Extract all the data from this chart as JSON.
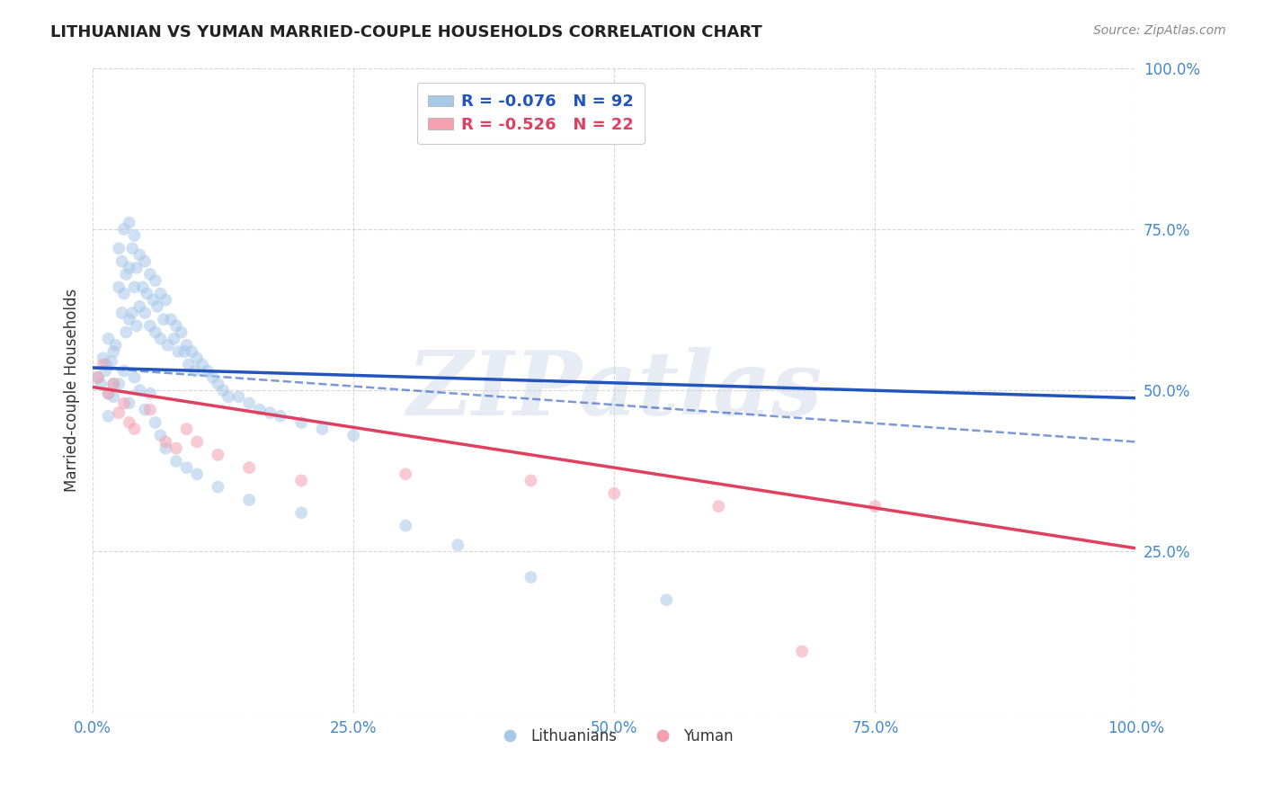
{
  "title": "LITHUANIAN VS YUMAN MARRIED-COUPLE HOUSEHOLDS CORRELATION CHART",
  "source": "Source: ZipAtlas.com",
  "ylabel": "Married-couple Households",
  "xlim": [
    0,
    1
  ],
  "ylim": [
    0,
    1
  ],
  "xticks": [
    0.0,
    0.25,
    0.5,
    0.75,
    1.0
  ],
  "xticklabels": [
    "0.0%",
    "25.0%",
    "50.0%",
    "75.0%",
    "100.0%"
  ],
  "yticks": [
    0.0,
    0.25,
    0.5,
    0.75,
    1.0
  ],
  "yticklabels": [
    "",
    "25.0%",
    "50.0%",
    "75.0%",
    "100.0%"
  ],
  "legend_labels": [
    "Lithuanians",
    "Yuman"
  ],
  "blue_R": -0.076,
  "blue_N": 92,
  "pink_R": -0.526,
  "pink_N": 22,
  "blue_color": "#a8c8e8",
  "pink_color": "#f4a0b0",
  "blue_line_color": "#2255bb",
  "pink_line_color": "#e04060",
  "tick_color": "#4488cc",
  "dot_size": 100,
  "dot_alpha": 0.55,
  "watermark": "ZIPatlas",
  "blue_line_y0": 0.535,
  "blue_line_y1": 0.488,
  "pink_line_y0": 0.505,
  "pink_line_y1": 0.255,
  "dash_line_y0": 0.535,
  "dash_line_y1": 0.42,
  "blue_scatter_x": [
    0.005,
    0.008,
    0.01,
    0.012,
    0.013,
    0.015,
    0.015,
    0.018,
    0.02,
    0.02,
    0.022,
    0.025,
    0.025,
    0.028,
    0.028,
    0.03,
    0.03,
    0.032,
    0.032,
    0.035,
    0.035,
    0.035,
    0.038,
    0.038,
    0.04,
    0.04,
    0.042,
    0.042,
    0.045,
    0.045,
    0.048,
    0.05,
    0.05,
    0.052,
    0.055,
    0.055,
    0.058,
    0.06,
    0.06,
    0.062,
    0.065,
    0.065,
    0.068,
    0.07,
    0.072,
    0.075,
    0.078,
    0.08,
    0.082,
    0.085,
    0.088,
    0.09,
    0.092,
    0.095,
    0.098,
    0.1,
    0.105,
    0.11,
    0.115,
    0.12,
    0.125,
    0.13,
    0.14,
    0.15,
    0.16,
    0.17,
    0.18,
    0.2,
    0.22,
    0.25,
    0.015,
    0.02,
    0.025,
    0.03,
    0.035,
    0.04,
    0.045,
    0.05,
    0.055,
    0.06,
    0.065,
    0.07,
    0.08,
    0.09,
    0.1,
    0.12,
    0.15,
    0.2,
    0.3,
    0.35,
    0.42,
    0.55
  ],
  "blue_scatter_y": [
    0.52,
    0.51,
    0.55,
    0.53,
    0.54,
    0.58,
    0.495,
    0.545,
    0.56,
    0.51,
    0.57,
    0.72,
    0.66,
    0.7,
    0.62,
    0.75,
    0.65,
    0.68,
    0.59,
    0.76,
    0.69,
    0.61,
    0.72,
    0.62,
    0.74,
    0.66,
    0.69,
    0.6,
    0.71,
    0.63,
    0.66,
    0.7,
    0.62,
    0.65,
    0.68,
    0.6,
    0.64,
    0.67,
    0.59,
    0.63,
    0.65,
    0.58,
    0.61,
    0.64,
    0.57,
    0.61,
    0.58,
    0.6,
    0.56,
    0.59,
    0.56,
    0.57,
    0.54,
    0.56,
    0.53,
    0.55,
    0.54,
    0.53,
    0.52,
    0.51,
    0.5,
    0.49,
    0.49,
    0.48,
    0.47,
    0.465,
    0.46,
    0.45,
    0.44,
    0.43,
    0.46,
    0.49,
    0.51,
    0.53,
    0.48,
    0.52,
    0.5,
    0.47,
    0.495,
    0.45,
    0.43,
    0.41,
    0.39,
    0.38,
    0.37,
    0.35,
    0.33,
    0.31,
    0.29,
    0.26,
    0.21,
    0.175
  ],
  "pink_scatter_x": [
    0.005,
    0.01,
    0.015,
    0.02,
    0.025,
    0.03,
    0.035,
    0.04,
    0.055,
    0.07,
    0.08,
    0.09,
    0.1,
    0.12,
    0.15,
    0.2,
    0.3,
    0.42,
    0.5,
    0.6,
    0.68,
    0.75
  ],
  "pink_scatter_y": [
    0.52,
    0.54,
    0.495,
    0.51,
    0.465,
    0.48,
    0.45,
    0.44,
    0.47,
    0.42,
    0.41,
    0.44,
    0.42,
    0.4,
    0.38,
    0.36,
    0.37,
    0.36,
    0.34,
    0.32,
    0.095,
    0.32
  ]
}
